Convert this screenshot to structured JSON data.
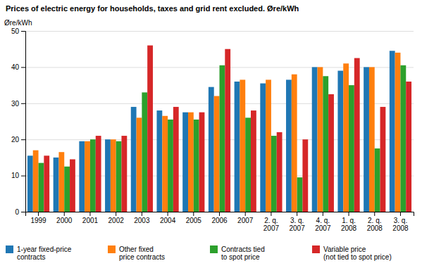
{
  "chart_data": {
    "type": "bar",
    "title": "Prices of electric energy for households, taxes and grid rent excluded. Øre/kWh",
    "ylabel": "Øre/kWh",
    "ylim": [
      0,
      50
    ],
    "yticks": [
      0,
      10,
      20,
      30,
      40,
      50
    ],
    "grid": true,
    "legend": "lower left",
    "categories": [
      "1999",
      "2000",
      "2001",
      "2002",
      "2003",
      "2004",
      "2005",
      "2006",
      "2007",
      "2. q.\n2007",
      "3. q.\n2007",
      "4. q.\n2007",
      "1. q.\n2008",
      "2. q.\n2008",
      "3. q.\n2008"
    ],
    "series": [
      {
        "name": "1-year fixed-price\ncontracts",
        "values": [
          15.5,
          15.0,
          19.5,
          20.0,
          29.0,
          28.0,
          27.5,
          34.5,
          36.0,
          35.5,
          36.5,
          40.0,
          39.0,
          40.0,
          44.5
        ]
      },
      {
        "name": "Other fixed\nprice contracts",
        "values": [
          17.0,
          16.5,
          19.5,
          20.0,
          26.0,
          26.5,
          27.5,
          32.0,
          36.5,
          36.5,
          38.0,
          40.0,
          41.0,
          40.0,
          44.0
        ]
      },
      {
        "name": "Contracts tied\nto spot price",
        "values": [
          13.5,
          12.5,
          20.0,
          19.5,
          33.0,
          25.5,
          25.5,
          40.5,
          26.0,
          21.0,
          9.5,
          37.5,
          35.0,
          17.5,
          40.5
        ]
      },
      {
        "name": "Variable price\n(not tied to spot price)",
        "values": [
          15.5,
          14.5,
          21.0,
          21.0,
          46.0,
          29.0,
          27.5,
          45.0,
          28.0,
          22.0,
          20.0,
          32.5,
          42.5,
          29.0,
          36.0
        ]
      }
    ]
  }
}
